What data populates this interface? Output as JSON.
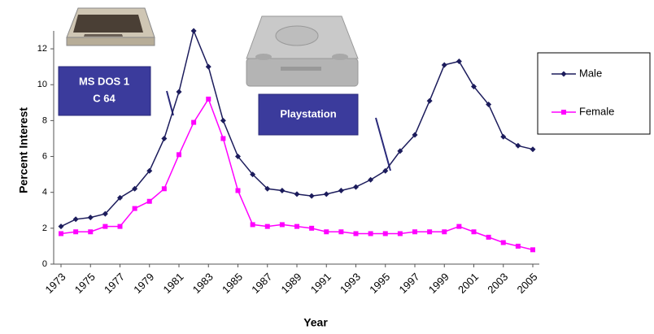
{
  "chart_data": {
    "type": "line",
    "x_label": "Year",
    "y_label": "Percent Interest",
    "x": [
      1973,
      1974,
      1975,
      1976,
      1977,
      1978,
      1979,
      1980,
      1981,
      1982,
      1983,
      1984,
      1985,
      1986,
      1987,
      1988,
      1989,
      1990,
      1991,
      1992,
      1993,
      1994,
      1995,
      1996,
      1997,
      1998,
      1999,
      2000,
      2001,
      2002,
      2003,
      2004,
      2005
    ],
    "series": [
      {
        "name": "Male",
        "color": "#1c1c5c",
        "marker": "diamond",
        "values": [
          2.1,
          2.5,
          2.6,
          2.8,
          3.7,
          4.2,
          5.2,
          7.0,
          9.6,
          13.0,
          11.0,
          8.0,
          6.0,
          5.0,
          4.2,
          4.1,
          3.9,
          3.8,
          3.9,
          4.1,
          4.3,
          4.7,
          5.2,
          6.3,
          7.2,
          9.1,
          11.1,
          11.3,
          9.9,
          8.9,
          7.1,
          6.6,
          6.4
        ]
      },
      {
        "name": "Female",
        "color": "#ff00ff",
        "marker": "square",
        "values": [
          1.7,
          1.8,
          1.8,
          2.1,
          2.1,
          3.1,
          3.5,
          4.2,
          6.1,
          7.9,
          9.2,
          7.0,
          4.1,
          2.2,
          2.1,
          2.2,
          2.1,
          2.0,
          1.8,
          1.8,
          1.7,
          1.7,
          1.7,
          1.7,
          1.8,
          1.8,
          1.8,
          2.1,
          1.8,
          1.5,
          1.2,
          1.0,
          0.8
        ]
      }
    ],
    "xlim": [
      1973,
      2005
    ],
    "xticks": [
      1973,
      1975,
      1977,
      1979,
      1981,
      1983,
      1985,
      1987,
      1989,
      1991,
      1993,
      1995,
      1997,
      1999,
      2001,
      2003,
      2005
    ],
    "ylim": [
      0,
      13
    ],
    "yticks": [
      0,
      2,
      4,
      6,
      8,
      10,
      12
    ],
    "legend": "right",
    "annotations": [
      {
        "lines": [
          "MS DOS 1",
          "C 64"
        ]
      },
      {
        "lines": [
          "Playstation"
        ]
      }
    ]
  }
}
